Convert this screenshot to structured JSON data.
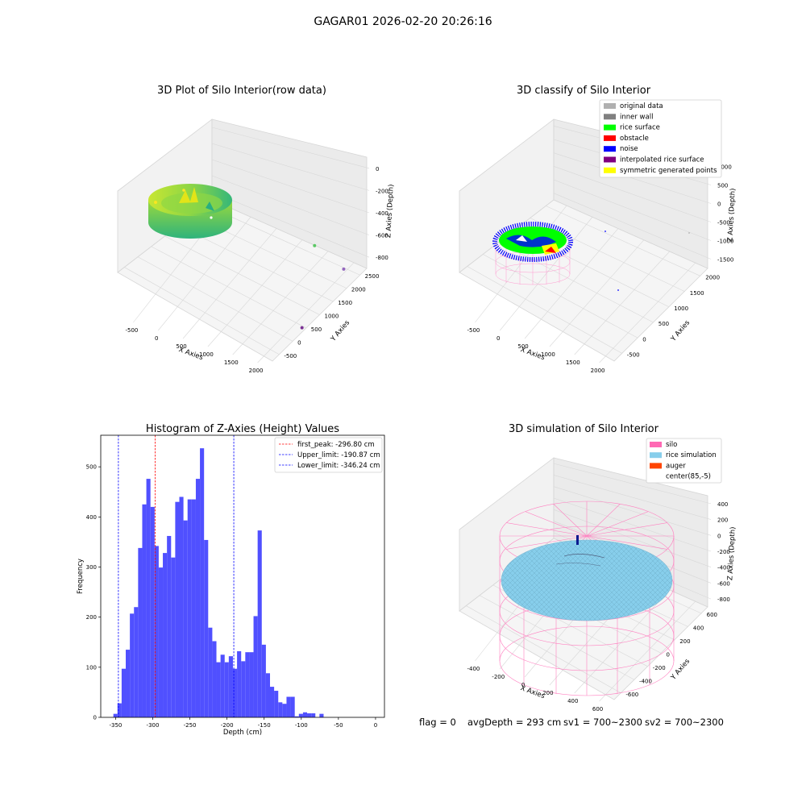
{
  "figure": {
    "suptitle": "GAGAR01 2026-02-20 20:26:16",
    "footer": {
      "flag": "flag = 0",
      "avg_depth": "avgDepth = 293 cm",
      "sv1": "sv1 = 700~2300",
      "sv2": "sv2 = 700~2300"
    }
  },
  "colors": {
    "bar": "#5050ff",
    "first_peak": "#ff0000",
    "limit": "#0000ff",
    "rice_surface": "#00ff00",
    "noise": "#0000ff",
    "silo": "#ff69b4",
    "rice_sim": "#87ceeb",
    "auger": "#ff4500"
  },
  "chart_data": [
    {
      "id": "raw3d",
      "type": "scatter",
      "projection": "3d",
      "title": "3D Plot of Silo Interior(row data)",
      "xlabel": "X Axies",
      "ylabel": "Y Axies",
      "zlabel": "Z Axies (Depth)",
      "x_ticks": [
        "-500",
        "0",
        "500",
        "1000",
        "1500",
        "2000"
      ],
      "y_ticks": [
        "-500",
        "0",
        "500",
        "1000",
        "1500",
        "2000",
        "2500"
      ],
      "z_ticks": [
        "0",
        "-200",
        "-400",
        "-600",
        "-800"
      ],
      "xlim": [
        -700,
        2000
      ],
      "ylim": [
        -600,
        2600
      ],
      "zlim": [
        -900,
        50
      ],
      "outliers": [
        {
          "x": 1450,
          "y": 1900,
          "z": -420,
          "color": "#5ac864"
        },
        {
          "x": 1650,
          "y": 2500,
          "z": -780,
          "color": "#9467bd"
        },
        {
          "x": 1950,
          "y": 500,
          "z": -820,
          "color": "#7b3294"
        }
      ]
    },
    {
      "id": "classify3d",
      "type": "scatter",
      "projection": "3d",
      "title": "3D classify of Silo Interior",
      "xlabel": "X Axies",
      "ylabel": "Y Axies",
      "zlabel": "Z Axies (Depth)",
      "x_ticks": [
        "-500",
        "0",
        "500",
        "1000",
        "1500",
        "2000"
      ],
      "y_ticks": [
        "-500",
        "0",
        "500",
        "1000",
        "1500",
        "2000"
      ],
      "z_ticks": [
        "1000",
        "500",
        "0",
        "-500",
        "-1000",
        "-1500"
      ],
      "legend": [
        {
          "label": "original data",
          "color": "#b0b0b0"
        },
        {
          "label": "inner wall",
          "color": "#808080"
        },
        {
          "label": "rice surface",
          "color": "#00ff00"
        },
        {
          "label": "obstacle",
          "color": "#ff0000"
        },
        {
          "label": "noise",
          "color": "#0000ff"
        },
        {
          "label": "interpolated rice surface",
          "color": "#800080"
        },
        {
          "label": "symmetric generated points",
          "color": "#ffff00"
        }
      ]
    },
    {
      "id": "histogram",
      "type": "bar",
      "title": "Histogram of Z-Axies (Height) Values",
      "xlabel": "Depth (cm)",
      "ylabel": "Frequency",
      "xlim": [
        -370,
        12
      ],
      "ylim": [
        0,
        563
      ],
      "x_ticks": [
        -350,
        -300,
        -250,
        -200,
        -150,
        -100,
        -50,
        0
      ],
      "y_ticks": [
        0,
        100,
        200,
        300,
        400,
        500
      ],
      "bin_start": -353,
      "bin_width": 5.55,
      "values": [
        7,
        28,
        97,
        135,
        207,
        220,
        338,
        425,
        476,
        420,
        342,
        299,
        328,
        362,
        319,
        430,
        440,
        393,
        435,
        435,
        476,
        537,
        354,
        179,
        152,
        110,
        125,
        110,
        122,
        97,
        132,
        112,
        130,
        130,
        202,
        373,
        145,
        88,
        61,
        53,
        30,
        27,
        41,
        41,
        2,
        7,
        10,
        8,
        8,
        0,
        7
      ],
      "vlines": [
        {
          "label": "first_peak: -296.80 cm",
          "x": -296.8,
          "color": "#ff0000"
        },
        {
          "label": "Upper_limit: -190.87 cm",
          "x": -190.87,
          "color": "#0000ff"
        },
        {
          "label": "Lower_limit: -346.24 cm",
          "x": -346.24,
          "color": "#0000ff"
        }
      ]
    },
    {
      "id": "sim3d",
      "type": "scatter",
      "projection": "3d",
      "title": "3D simulation of Silo Interior",
      "xlabel": "X Axies",
      "ylabel": "Y Axies",
      "zlabel": "Z Axies (Depth)",
      "x_ticks": [
        "-400",
        "-200",
        "0",
        "200",
        "400",
        "600"
      ],
      "y_ticks": [
        "-600",
        "-400",
        "-200",
        "0",
        "200",
        "400",
        "600"
      ],
      "z_ticks": [
        "400",
        "200",
        "0",
        "-200",
        "-400",
        "-600",
        "-800"
      ],
      "legend": [
        {
          "label": "silo",
          "color": "#ff69b4"
        },
        {
          "label": "rice simulation",
          "color": "#87ceeb"
        },
        {
          "label": "auger",
          "color": "#ff4500"
        },
        {
          "label": "center(85,-5)",
          "color": "#ffffff"
        }
      ]
    }
  ]
}
